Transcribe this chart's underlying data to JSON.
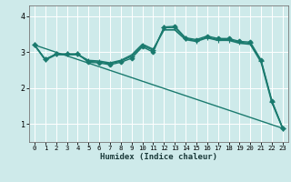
{
  "xlabel": "Humidex (Indice chaleur)",
  "bg_color": "#ceeaea",
  "line_color": "#1a7a6e",
  "grid_color": "#ffffff",
  "x_ticks": [
    0,
    1,
    2,
    3,
    4,
    5,
    6,
    7,
    8,
    9,
    10,
    11,
    12,
    13,
    14,
    15,
    16,
    17,
    18,
    19,
    20,
    21,
    22,
    23
  ],
  "y_ticks": [
    1,
    2,
    3,
    4
  ],
  "ylim": [
    0.5,
    4.3
  ],
  "xlim": [
    -0.5,
    23.5
  ],
  "series": [
    {
      "x": [
        0,
        1,
        2,
        3,
        4,
        5,
        6,
        7,
        8,
        9,
        10,
        11,
        12,
        13,
        14,
        15,
        16,
        17,
        18,
        19,
        20,
        21,
        22,
        23
      ],
      "y": [
        3.2,
        2.8,
        2.95,
        2.95,
        2.95,
        2.72,
        2.7,
        2.65,
        2.72,
        2.83,
        3.15,
        3.0,
        3.7,
        3.72,
        3.4,
        3.35,
        3.45,
        3.38,
        3.38,
        3.3,
        3.28,
        2.78,
        1.65,
        0.88
      ],
      "marker": "D",
      "markersize": 2.5,
      "linewidth": 1.0
    },
    {
      "x": [
        0,
        1,
        2,
        3,
        4,
        5,
        6,
        7,
        8,
        9,
        10,
        11,
        12,
        13,
        14,
        15,
        16,
        17,
        18,
        19,
        20,
        21,
        22,
        23
      ],
      "y": [
        3.2,
        2.8,
        2.95,
        2.95,
        2.95,
        2.75,
        2.72,
        2.68,
        2.75,
        2.88,
        3.18,
        3.05,
        3.68,
        3.68,
        3.38,
        3.32,
        3.42,
        3.35,
        3.35,
        3.28,
        3.25,
        2.75,
        1.62,
        0.88
      ],
      "marker": "+",
      "markersize": 4,
      "linewidth": 0.9
    },
    {
      "x": [
        0,
        1,
        2,
        3,
        4,
        5,
        6,
        7,
        8,
        9,
        10,
        11,
        12,
        13,
        14,
        15,
        16,
        17,
        18,
        19,
        20,
        21,
        22,
        23
      ],
      "y": [
        3.2,
        2.78,
        2.93,
        2.93,
        2.93,
        2.77,
        2.75,
        2.7,
        2.77,
        2.92,
        3.22,
        3.08,
        3.62,
        3.62,
        3.35,
        3.3,
        3.4,
        3.33,
        3.33,
        3.25,
        3.22,
        2.72,
        1.6,
        0.88
      ],
      "marker": null,
      "markersize": 0,
      "linewidth": 1.2
    },
    {
      "x": [
        0,
        23
      ],
      "y": [
        3.2,
        0.88
      ],
      "marker": null,
      "markersize": 0,
      "linewidth": 1.0
    }
  ]
}
